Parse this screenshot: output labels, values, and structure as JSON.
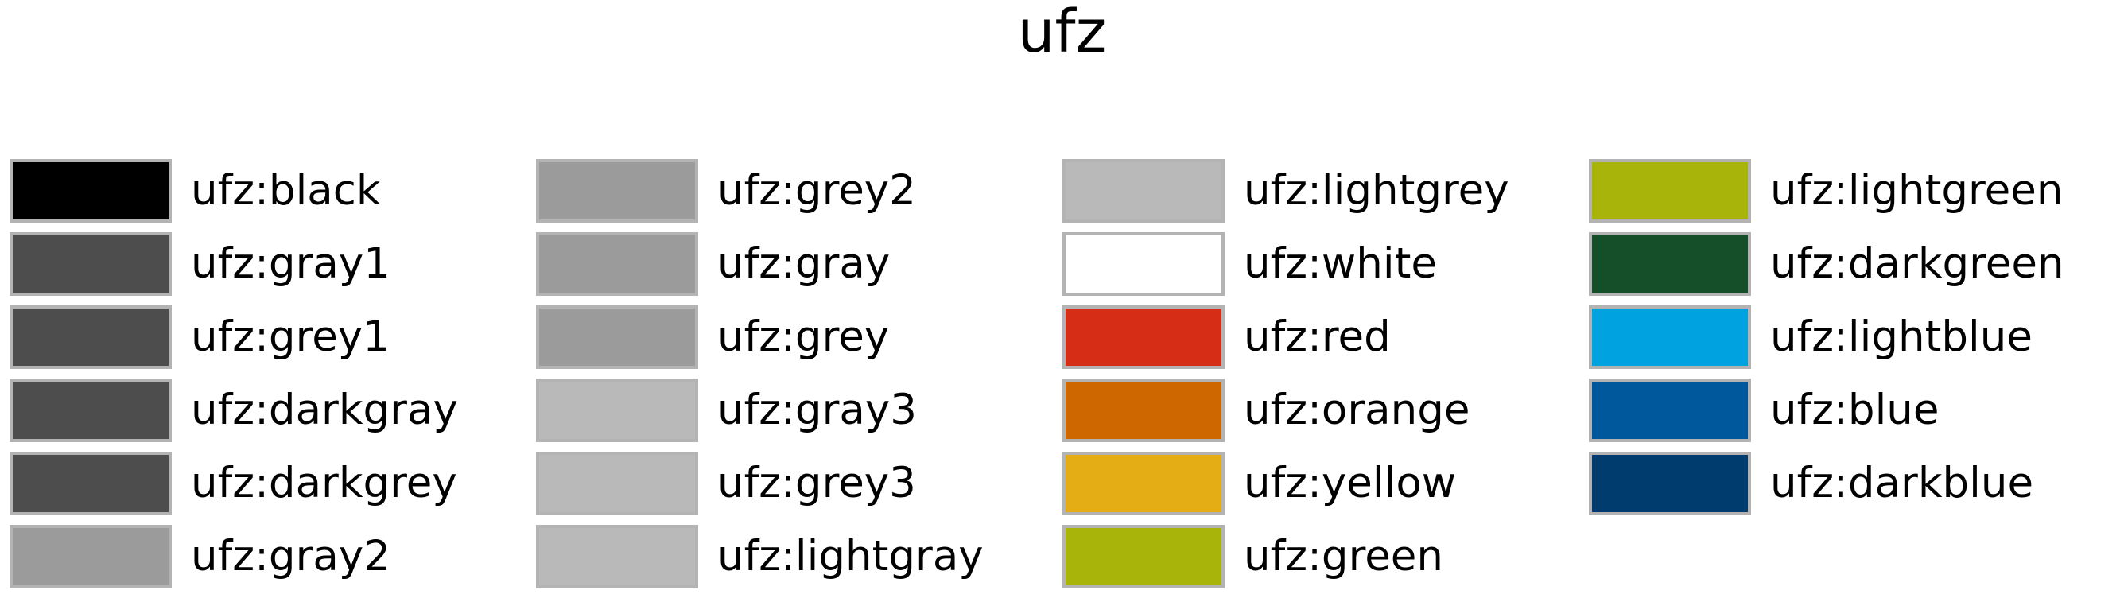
{
  "title": "ufz",
  "columns": [
    [
      {
        "label": "ufz:black",
        "color": "#000000"
      },
      {
        "label": "ufz:gray1",
        "color": "#4d4d4d"
      },
      {
        "label": "ufz:grey1",
        "color": "#4d4d4d"
      },
      {
        "label": "ufz:darkgray",
        "color": "#4d4d4d"
      },
      {
        "label": "ufz:darkgrey",
        "color": "#4d4d4d"
      },
      {
        "label": "ufz:gray2",
        "color": "#9b9b9b"
      }
    ],
    [
      {
        "label": "ufz:grey2",
        "color": "#9b9b9b"
      },
      {
        "label": "ufz:gray",
        "color": "#9b9b9b"
      },
      {
        "label": "ufz:grey",
        "color": "#9b9b9b"
      },
      {
        "label": "ufz:gray3",
        "color": "#b9b9b9"
      },
      {
        "label": "ufz:grey3",
        "color": "#b9b9b9"
      },
      {
        "label": "ufz:lightgray",
        "color": "#b9b9b9"
      }
    ],
    [
      {
        "label": "ufz:lightgrey",
        "color": "#b9b9b9"
      },
      {
        "label": "ufz:white",
        "color": "#ffffff"
      },
      {
        "label": "ufz:red",
        "color": "#d62d17"
      },
      {
        "label": "ufz:orange",
        "color": "#cf6700"
      },
      {
        "label": "ufz:yellow",
        "color": "#e5ad15"
      },
      {
        "label": "ufz:green",
        "color": "#a9b40b"
      }
    ],
    [
      {
        "label": "ufz:lightgreen",
        "color": "#a9b40b"
      },
      {
        "label": "ufz:darkgreen",
        "color": "#144f2a"
      },
      {
        "label": "ufz:lightblue",
        "color": "#00a2e0"
      },
      {
        "label": "ufz:blue",
        "color": "#00589c"
      },
      {
        "label": "ufz:darkblue",
        "color": "#003c6e"
      }
    ]
  ]
}
